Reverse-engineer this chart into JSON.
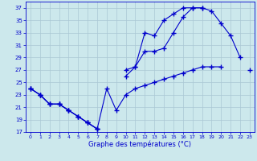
{
  "xlabel": "Graphe des températures (°C)",
  "background_color": "#cce8ec",
  "grid_color": "#aac8d4",
  "line_color": "#0000cc",
  "line1_y": [
    24,
    23,
    21.5,
    21.5,
    20.5,
    19.5,
    18.5,
    17.5,
    null,
    null,
    27,
    27.5,
    30,
    30,
    30.5,
    33,
    35.5,
    37,
    37,
    36.5,
    34.5,
    32.5,
    29,
    null
  ],
  "line2_y": [
    24,
    23,
    21.5,
    21.5,
    20.5,
    19.5,
    18.5,
    17.5,
    null,
    null,
    26,
    27.5,
    33,
    32.5,
    35,
    36,
    37,
    37,
    37,
    null,
    null,
    null,
    null,
    null
  ],
  "line3_y": [
    24,
    23,
    21.5,
    21.5,
    20.5,
    19.5,
    18.5,
    17.5,
    24,
    20.5,
    23,
    24,
    24.5,
    25,
    25.5,
    26,
    26.5,
    27,
    27.5,
    27.5,
    27.5,
    null,
    null,
    27
  ],
  "ylim": [
    17,
    38
  ],
  "yticks": [
    17,
    19,
    21,
    23,
    25,
    27,
    29,
    31,
    33,
    35,
    37
  ],
  "xticks": [
    0,
    1,
    2,
    3,
    4,
    5,
    6,
    7,
    8,
    9,
    10,
    11,
    12,
    13,
    14,
    15,
    16,
    17,
    18,
    19,
    20,
    21,
    22,
    23
  ],
  "xlim": [
    -0.5,
    23.5
  ]
}
